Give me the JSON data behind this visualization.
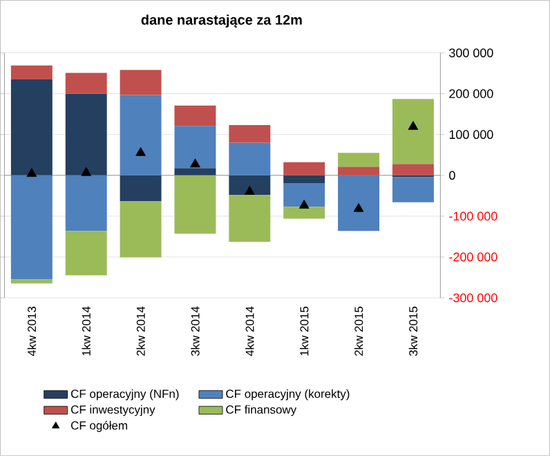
{
  "chart_data": {
    "type": "bar",
    "title": "dane narastające za 12m",
    "stacked": true,
    "categories": [
      "4kw 2013",
      "1kw 2014",
      "2kw 2014",
      "3kw 2014",
      "4kw 2014",
      "1kw 2015",
      "2kw 2015",
      "3kw 2015"
    ],
    "series": [
      {
        "name": "CF operacyjny (NFn)",
        "color": "#243f60",
        "values": [
          235000,
          200000,
          -63000,
          18000,
          -48000,
          -19000,
          0,
          -4000
        ]
      },
      {
        "name": "CF operacyjny (korekty)",
        "color": "#4f81bd",
        "values": [
          -255000,
          -136000,
          197000,
          103000,
          80000,
          -58000,
          -136000,
          -62000
        ]
      },
      {
        "name": "CF inwestycyjny",
        "color": "#c0504d",
        "values": [
          34000,
          51000,
          61000,
          50000,
          43000,
          32000,
          21000,
          28000
        ]
      },
      {
        "name": "CF finansowy",
        "color": "#9bbb59",
        "values": [
          -10000,
          -109000,
          -138000,
          -143000,
          -115000,
          -29000,
          34000,
          159000
        ]
      },
      {
        "name": "CF ogółem",
        "type": "scatter",
        "marker": "triangle",
        "color": "#000000",
        "values": [
          4000,
          6000,
          55000,
          27000,
          -40000,
          -74000,
          -82000,
          119000
        ]
      }
    ],
    "ylim": [
      -300000,
      300000
    ],
    "yticks": [
      {
        "value": -300000,
        "label": "-300 000"
      },
      {
        "value": -200000,
        "label": "-200 000"
      },
      {
        "value": -100000,
        "label": "-100 000"
      },
      0,
      {
        "value": 100000,
        "label": "100 000"
      },
      {
        "value": 200000,
        "label": "200 000"
      },
      {
        "value": 300000,
        "label": "300 000"
      }
    ],
    "grid": "y",
    "legend": "bottom"
  }
}
